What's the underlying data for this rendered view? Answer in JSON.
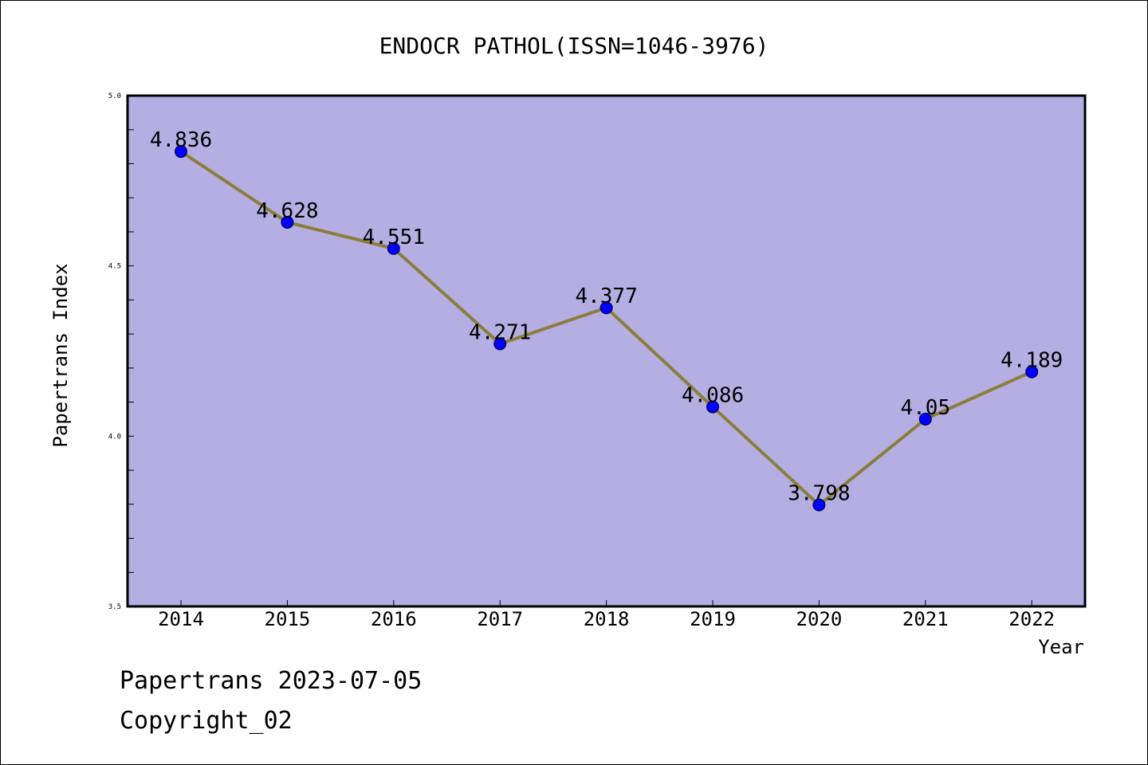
{
  "colors": {
    "plot_bg": "#b5aee2",
    "line": "#8b7d3a",
    "marker": "#0000ff",
    "axis": "#000000",
    "text": "#000000"
  },
  "footer": {
    "line1": "Papertrans 2023-07-05",
    "line2": "Copyright_02"
  },
  "chart_data": {
    "type": "line",
    "title": "ENDOCR PATHOL(ISSN=1046-3976)",
    "xlabel": "Year",
    "ylabel": "Papertrans Index",
    "categories": [
      "2014",
      "2015",
      "2016",
      "2017",
      "2018",
      "2019",
      "2020",
      "2021",
      "2022"
    ],
    "series": [
      {
        "values": [
          4.836,
          4.628,
          4.551,
          4.271,
          4.377,
          4.086,
          3.798,
          4.05,
          4.189
        ],
        "labels": [
          "4.836",
          "4.628",
          "4.551",
          "4.271",
          "4.377",
          "4.086",
          "3.798",
          "4.05",
          "4.189"
        ]
      }
    ],
    "ylim": [
      3.5,
      5.0
    ],
    "yticks": [
      "3.5",
      "4.0",
      "4.5",
      "5.0"
    ],
    "y_minor_step": 0.1,
    "grid": false,
    "legend": "none"
  }
}
